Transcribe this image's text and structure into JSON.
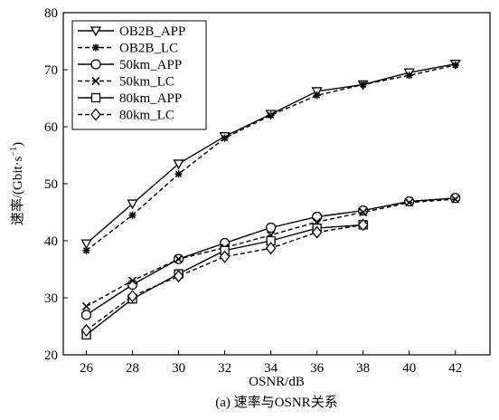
{
  "chart_data": {
    "type": "line",
    "title": "",
    "caption": "(a) 速率与OSNR关系",
    "xlabel": "OSNR/dB",
    "ylabel_main": "速率/(Gbit·s",
    "ylabel_exp": "−1",
    "ylabel_close": ")",
    "xlim": [
      25,
      43.5
    ],
    "ylim": [
      20,
      80
    ],
    "xticks": [
      26,
      28,
      30,
      32,
      34,
      36,
      38,
      40,
      42
    ],
    "yticks": [
      20,
      30,
      40,
      50,
      60,
      70,
      80
    ],
    "grid": false,
    "legend_position": "top-left",
    "series": [
      {
        "name": "OB2B_APP",
        "dash": "solid",
        "marker": "triangle-down",
        "x": [
          26,
          28,
          30,
          32,
          34,
          36,
          38,
          40,
          42
        ],
        "y": [
          39.5,
          46.5,
          53.5,
          58.3,
          62.2,
          66.2,
          67.4,
          69.5,
          71.0
        ]
      },
      {
        "name": "OB2B_LC",
        "dash": "dashed",
        "marker": "asterisk",
        "x": [
          26,
          28,
          30,
          32,
          34,
          36,
          38,
          40,
          42
        ],
        "y": [
          38.3,
          44.5,
          51.7,
          58.0,
          62.0,
          65.5,
          67.4,
          69.0,
          70.8
        ]
      },
      {
        "name": "50km_APP",
        "dash": "solid",
        "marker": "circle",
        "x": [
          26,
          28,
          30,
          32,
          34,
          36,
          38,
          40,
          42
        ],
        "y": [
          27.0,
          32.3,
          36.8,
          39.6,
          42.3,
          44.2,
          45.3,
          46.9,
          47.5
        ]
      },
      {
        "name": "50km_LC",
        "dash": "dashed",
        "marker": "x",
        "x": [
          26,
          28,
          30,
          32,
          34,
          36,
          38,
          40,
          42
        ],
        "y": [
          28.5,
          33.0,
          36.8,
          38.8,
          41.0,
          43.3,
          45.0,
          46.7,
          47.3
        ]
      },
      {
        "name": "80km_APP",
        "dash": "solid",
        "marker": "square",
        "x": [
          26,
          28,
          30,
          32,
          34,
          36,
          38
        ],
        "y": [
          23.5,
          29.8,
          34.2,
          38.3,
          40.0,
          42.2,
          42.8
        ]
      },
      {
        "name": "80km_LC",
        "dash": "dashed",
        "marker": "diamond",
        "x": [
          26,
          28,
          30,
          32,
          34,
          36,
          38
        ],
        "y": [
          24.3,
          30.3,
          33.8,
          37.2,
          38.7,
          41.5,
          42.8
        ]
      }
    ]
  }
}
